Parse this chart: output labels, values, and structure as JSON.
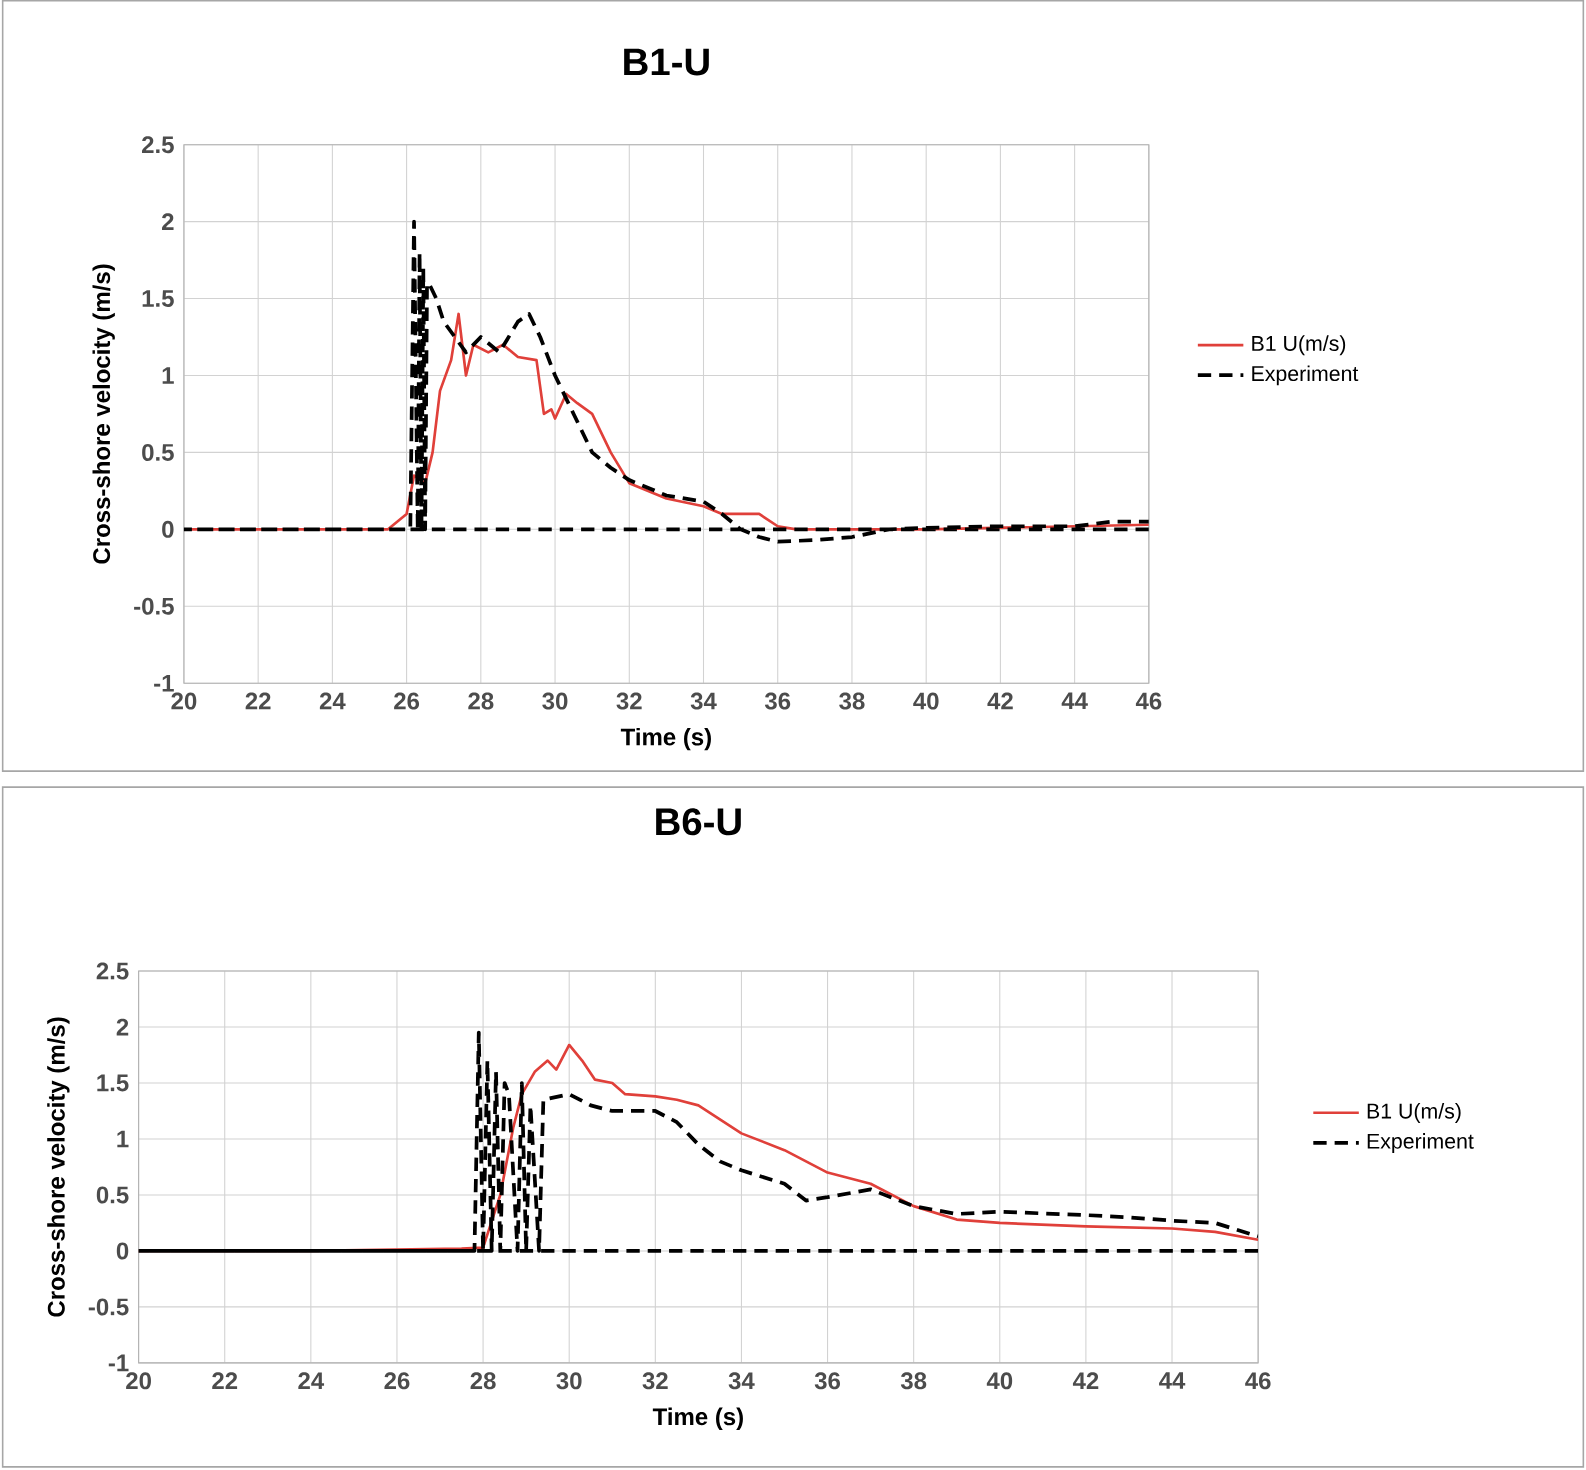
{
  "chart_data": [
    {
      "type": "line",
      "title": "B1-U",
      "xlabel": "Time (s)",
      "ylabel": "Cross-shore velocity (m/s)",
      "xlim": [
        20,
        46
      ],
      "ylim": [
        -1,
        2.5
      ],
      "xticks": [
        20,
        22,
        24,
        26,
        28,
        30,
        32,
        34,
        36,
        38,
        40,
        42,
        44,
        46
      ],
      "yticks": [
        -1,
        -0.5,
        0,
        0.5,
        1,
        1.5,
        2,
        2.5
      ],
      "grid": true,
      "legend": "right",
      "series": [
        {
          "name": "B1 U(m/s)",
          "color": "#e0403a",
          "line_style": "solid",
          "x": [
            20,
            25.5,
            26,
            26.2,
            26.5,
            26.7,
            26.9,
            27.2,
            27.4,
            27.6,
            27.8,
            28.2,
            28.6,
            29,
            29.5,
            29.7,
            29.9,
            30,
            30.3,
            30.6,
            31,
            31.5,
            32,
            33,
            34,
            34.5,
            35.5,
            36,
            36.5,
            40,
            44,
            46
          ],
          "values": [
            0,
            0,
            0.1,
            0.35,
            0.3,
            0.5,
            0.9,
            1.1,
            1.4,
            1.0,
            1.2,
            1.15,
            1.2,
            1.12,
            1.1,
            0.75,
            0.78,
            0.72,
            0.88,
            0.82,
            0.75,
            0.5,
            0.3,
            0.2,
            0.15,
            0.1,
            0.1,
            0.02,
            0,
            0,
            0.02,
            0.03
          ]
        },
        {
          "name": "Experiment",
          "color": "#000000",
          "line_style": "dashed",
          "x": [
            46,
            20,
            26.1,
            26.2,
            26.3,
            26.35,
            26.4,
            26.45,
            26.5,
            26.55,
            26.6,
            26.8,
            27,
            27.3,
            27.6,
            28,
            28.5,
            29,
            29.3,
            29.6,
            30,
            30.5,
            31,
            31.5,
            32,
            33,
            34,
            34.5,
            35,
            35.5,
            36,
            37,
            38,
            39,
            40,
            42,
            44,
            45,
            46
          ],
          "values": [
            0,
            0,
            0,
            2.0,
            0,
            1.8,
            0,
            1.7,
            0,
            1.6,
            1.6,
            1.5,
            1.35,
            1.25,
            1.15,
            1.25,
            1.15,
            1.35,
            1.4,
            1.25,
            1.0,
            0.75,
            0.5,
            0.4,
            0.32,
            0.22,
            0.18,
            0.1,
            0,
            -0.05,
            -0.08,
            -0.07,
            -0.05,
            0,
            0.01,
            0.02,
            0.02,
            0.05,
            0.05
          ]
        }
      ]
    },
    {
      "type": "line",
      "title": "B6-U",
      "xlabel": "Time (s)",
      "ylabel": "Cross-shore velocity (m/s)",
      "xlim": [
        20,
        46
      ],
      "ylim": [
        -1,
        2.5
      ],
      "xticks": [
        20,
        22,
        24,
        26,
        28,
        30,
        32,
        34,
        36,
        38,
        40,
        42,
        44,
        46
      ],
      "yticks": [
        -1,
        -0.5,
        0,
        0.5,
        1,
        1.5,
        2,
        2.5
      ],
      "grid": true,
      "legend": "right",
      "series": [
        {
          "name": "B1 U(m/s)",
          "color": "#e0403a",
          "line_style": "solid",
          "x": [
            20,
            24,
            27.5,
            28,
            28.4,
            28.7,
            28.9,
            29.2,
            29.5,
            29.7,
            30,
            30.3,
            30.6,
            31,
            31.3,
            32,
            32.5,
            33,
            34,
            35,
            36,
            37,
            38,
            39,
            40,
            42,
            44,
            45,
            46
          ],
          "values": [
            0,
            0,
            0.02,
            0.03,
            0.5,
            1.1,
            1.4,
            1.6,
            1.7,
            1.62,
            1.84,
            1.7,
            1.53,
            1.5,
            1.4,
            1.38,
            1.35,
            1.3,
            1.05,
            0.9,
            0.7,
            0.6,
            0.4,
            0.28,
            0.25,
            0.22,
            0.2,
            0.17,
            0.1
          ]
        },
        {
          "name": "Experiment",
          "color": "#000000",
          "line_style": "dashed",
          "x": [
            46,
            20,
            27.8,
            27.9,
            28,
            28.1,
            28.2,
            28.3,
            28.4,
            28.5,
            28.6,
            28.8,
            28.9,
            29,
            29.1,
            29.3,
            29.4,
            30,
            30.5,
            31,
            32,
            32.5,
            33,
            33.5,
            34,
            35,
            35.5,
            36,
            37,
            38,
            39,
            40,
            42,
            43,
            44,
            45,
            46
          ],
          "values": [
            0,
            0,
            0,
            1.95,
            0,
            1.7,
            0,
            1.6,
            0,
            1.5,
            1.4,
            0,
            1.5,
            0,
            1.3,
            0,
            1.35,
            1.4,
            1.3,
            1.25,
            1.25,
            1.15,
            0.95,
            0.8,
            0.72,
            0.6,
            0.45,
            0.48,
            0.55,
            0.4,
            0.33,
            0.35,
            0.32,
            0.3,
            0.27,
            0.25,
            0.13
          ]
        }
      ]
    }
  ]
}
